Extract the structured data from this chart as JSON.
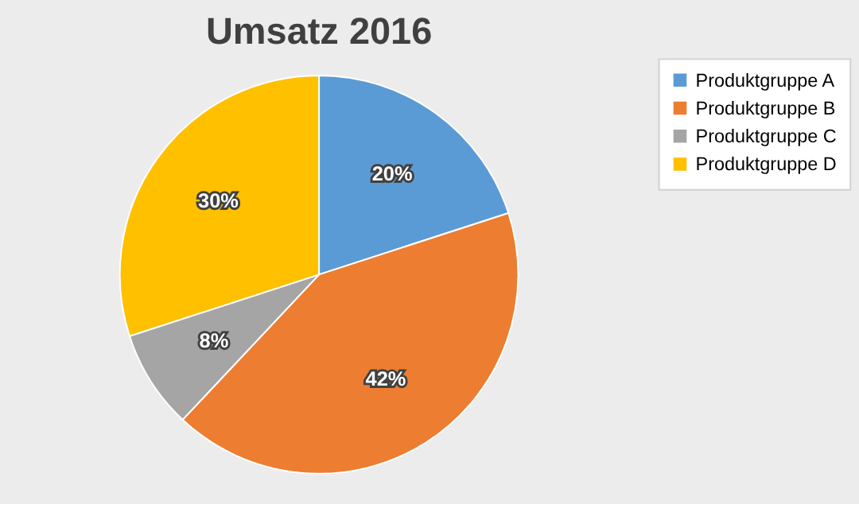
{
  "chart_data": {
    "type": "pie",
    "title": "Umsatz 2016",
    "categories": [
      "Produktgruppe A",
      "Produktgruppe B",
      "Produktgruppe C",
      "Produktgruppe D"
    ],
    "values": [
      20,
      42,
      8,
      30
    ],
    "colors": [
      "#5b9bd5",
      "#ed7d31",
      "#a5a5a5",
      "#ffc000"
    ],
    "value_labels": [
      "20%",
      "42%",
      "8%",
      "30%"
    ],
    "legend": "right"
  }
}
